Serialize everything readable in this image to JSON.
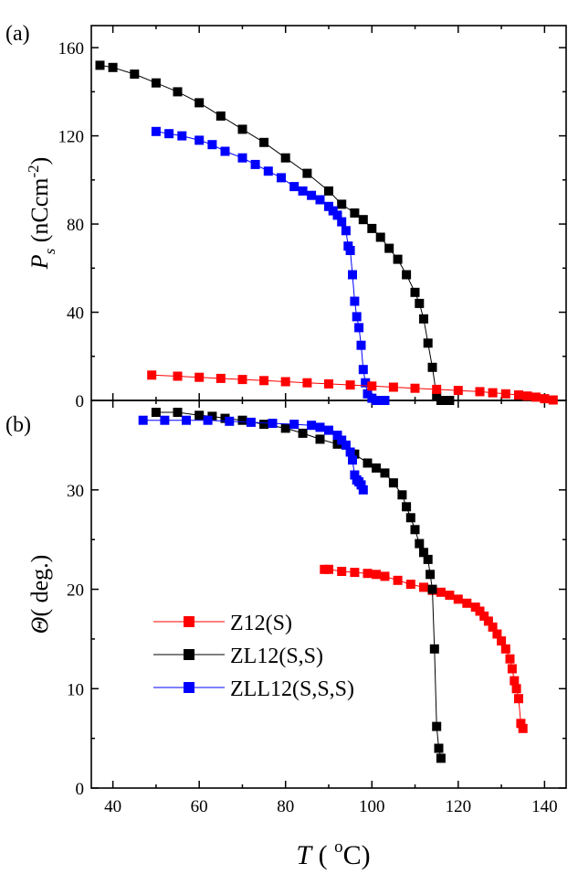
{
  "panels": [
    {
      "id": "a",
      "label": "(a)",
      "ylabel_main": "P",
      "ylabel_sub": "s",
      "ylabel_unit": " (nCcm",
      "ylabel_sup": "-2",
      "ylabel_close": ")"
    },
    {
      "id": "b",
      "label": "(b)",
      "ylabel_main": "Θ",
      "ylabel_unit": "( deg.)"
    }
  ],
  "xlabel": {
    "main": "T",
    "open": " ( ",
    "sup": "o",
    "unit": "C)"
  },
  "legend": [
    "Z12(S)",
    "ZL12(S,S)",
    "ZLL12(S,S,S)"
  ],
  "colors": {
    "Z12(S)": "#ff0000",
    "ZL12(S,S)": "#000000",
    "ZLL12(S,S,S)": "#0000ff"
  },
  "chart_data": [
    {
      "type": "scatter",
      "panel": "a",
      "xlim": [
        35,
        145
      ],
      "ylim": [
        0,
        170
      ],
      "xticks": [
        40,
        60,
        80,
        100,
        120,
        140
      ],
      "yticks": [
        0,
        40,
        80,
        120,
        160
      ],
      "series": [
        {
          "name": "ZL12(S,S)",
          "x": [
            37,
            40,
            45,
            50,
            55,
            60,
            65,
            70,
            75,
            80,
            85,
            90,
            93,
            96,
            98,
            100,
            102,
            104,
            106,
            108,
            110,
            111,
            112,
            113,
            114,
            115,
            116,
            117,
            118
          ],
          "y": [
            152,
            151,
            148,
            144,
            140,
            135,
            129,
            123,
            117,
            110,
            103,
            95,
            89,
            85,
            82,
            78,
            74,
            69,
            64,
            57,
            49,
            44,
            37,
            26,
            15,
            2,
            0,
            0,
            0
          ]
        },
        {
          "name": "ZLL12(S,S,S)",
          "x": [
            50,
            53,
            56,
            60,
            63,
            66,
            70,
            73,
            76,
            79,
            82,
            84,
            86,
            88,
            90,
            91,
            92,
            93,
            94,
            94.5,
            95,
            95.5,
            96,
            96.5,
            97,
            97.5,
            98,
            98.5,
            99,
            100,
            101,
            102,
            103
          ],
          "y": [
            122,
            121,
            120,
            118,
            116,
            113,
            110,
            107,
            104,
            101,
            97,
            95,
            93,
            91,
            88,
            86,
            84,
            81,
            77,
            70,
            68,
            57,
            45,
            38,
            33,
            25,
            14,
            8,
            3,
            1,
            0,
            0,
            0
          ]
        },
        {
          "name": "Z12(S)",
          "x": [
            49,
            55,
            60,
            65,
            70,
            75,
            80,
            85,
            90,
            95,
            100,
            105,
            110,
            115,
            120,
            125,
            128,
            131,
            134,
            136,
            138,
            140,
            142
          ],
          "y": [
            11.5,
            11,
            10.5,
            10,
            9.5,
            9,
            8.5,
            8,
            7.5,
            7,
            6.5,
            6,
            5.5,
            5,
            4.5,
            4,
            3.5,
            3,
            2.5,
            2,
            1.5,
            0.8,
            0.2
          ]
        }
      ]
    },
    {
      "type": "scatter",
      "panel": "b",
      "xlim": [
        35,
        145
      ],
      "ylim": [
        0,
        39
      ],
      "xticks": [
        40,
        60,
        80,
        100,
        120,
        140
      ],
      "yticks": [
        0,
        10,
        20,
        30
      ],
      "series": [
        {
          "name": "Z12(S)",
          "x": [
            89,
            90,
            93,
            96,
            99,
            101,
            103,
            106,
            109,
            112,
            114,
            116,
            118,
            120,
            122,
            124,
            125,
            126,
            127,
            128,
            129,
            130,
            131,
            132,
            132.5,
            133,
            133.5,
            134,
            134.5,
            135
          ],
          "y": [
            22,
            22,
            21.8,
            21.7,
            21.6,
            21.5,
            21.3,
            20.9,
            20.5,
            20.2,
            19.9,
            19.7,
            19.4,
            19,
            18.6,
            18.2,
            17.8,
            17.3,
            16.8,
            16.2,
            15.5,
            14.8,
            14,
            13,
            12,
            10.8,
            10,
            9,
            6.5,
            6
          ]
        },
        {
          "name": "ZL12(S,S)",
          "x": [
            50,
            55,
            60,
            63,
            66,
            70,
            75,
            80,
            84,
            88,
            92,
            96,
            99,
            101,
            103,
            105,
            107,
            108,
            109,
            110,
            111,
            112,
            113,
            113.5,
            114,
            114.5,
            115,
            115.5,
            116
          ],
          "y": [
            37.8,
            37.8,
            37.5,
            37.4,
            37.2,
            37,
            36.6,
            36.2,
            35.7,
            35.1,
            34.6,
            33.6,
            32.7,
            32.2,
            31.7,
            30.7,
            29.5,
            28.3,
            27.2,
            26,
            24.6,
            23.7,
            23,
            21.5,
            20,
            14,
            6.2,
            4,
            3
          ]
        },
        {
          "name": "ZLL12(S,S,S)",
          "x": [
            47,
            52,
            57,
            62,
            67,
            72,
            77,
            82,
            86,
            88,
            90,
            92,
            93,
            94,
            95,
            95.5,
            96,
            96.5,
            97,
            97.5,
            98
          ],
          "y": [
            37,
            37,
            37,
            37,
            36.9,
            36.8,
            36.7,
            36.6,
            36.5,
            36.3,
            36,
            35.5,
            35,
            34.5,
            33.8,
            33,
            31.5,
            31,
            30.8,
            30.5,
            30
          ]
        }
      ]
    }
  ]
}
